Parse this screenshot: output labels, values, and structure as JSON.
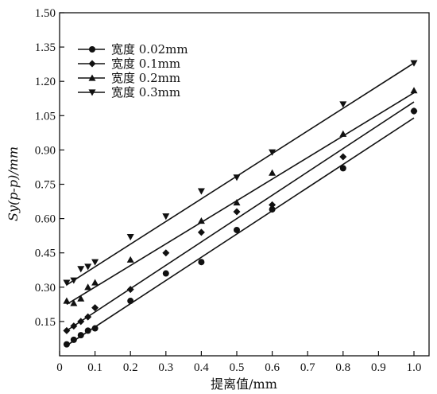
{
  "chart_data": {
    "type": "scatter",
    "xlabel": "提离值/mm",
    "ylabel": "Sy(p-p)/mm",
    "xlim": [
      0,
      1.05
    ],
    "ylim": [
      0,
      1.5
    ],
    "x_ticks": [
      0,
      0.1,
      0.2,
      0.3,
      0.4,
      0.5,
      0.6,
      0.7,
      0.8,
      0.9,
      1.0
    ],
    "x_tick_labels": [
      "0",
      "0.1",
      "0.2",
      "0.3",
      "0.4",
      "0.5",
      "0.6",
      "0.7",
      "0.8",
      "0.9",
      "1.0"
    ],
    "y_ticks": [
      0.15,
      0.3,
      0.45,
      0.6,
      0.75,
      0.9,
      1.05,
      1.2,
      1.35,
      1.5
    ],
    "y_tick_labels": [
      "0.15",
      "0.30",
      "0.45",
      "0.60",
      "0.75",
      "0.90",
      "1.05",
      "1.20",
      "1.35",
      "1.50"
    ],
    "grid": false,
    "legend_position": "top-left",
    "series": [
      {
        "name": "宽度  0.02mm",
        "marker": "circle",
        "x": [
          0.02,
          0.04,
          0.06,
          0.08,
          0.1,
          0.2,
          0.3,
          0.4,
          0.5,
          0.6,
          0.8,
          1.0
        ],
        "y": [
          0.05,
          0.07,
          0.09,
          0.11,
          0.12,
          0.24,
          0.36,
          0.41,
          0.55,
          0.64,
          0.82,
          1.07
        ],
        "fit": [
          [
            0.02,
            0.045
          ],
          [
            1.0,
            1.04
          ]
        ]
      },
      {
        "name": "宽度  0.1mm",
        "marker": "diamond",
        "x": [
          0.02,
          0.04,
          0.06,
          0.08,
          0.1,
          0.2,
          0.3,
          0.4,
          0.5,
          0.6,
          0.8,
          1.0
        ],
        "y": [
          0.11,
          0.13,
          0.15,
          0.17,
          0.21,
          0.29,
          0.45,
          0.54,
          0.63,
          0.66,
          0.87,
          1.07
        ],
        "fit": [
          [
            0.02,
            0.11
          ],
          [
            1.0,
            1.11
          ]
        ]
      },
      {
        "name": "宽度  0.2mm",
        "marker": "triangle-up",
        "x": [
          0.02,
          0.04,
          0.06,
          0.08,
          0.1,
          0.2,
          0.4,
          0.5,
          0.6,
          0.8,
          1.0
        ],
        "y": [
          0.24,
          0.23,
          0.25,
          0.3,
          0.32,
          0.42,
          0.59,
          0.67,
          0.8,
          0.97,
          1.16
        ],
        "fit": [
          [
            0.02,
            0.225
          ],
          [
            1.0,
            1.15
          ]
        ]
      },
      {
        "name": "宽度  0.3mm",
        "marker": "triangle-down",
        "x": [
          0.02,
          0.04,
          0.06,
          0.08,
          0.1,
          0.2,
          0.3,
          0.4,
          0.5,
          0.6,
          0.8,
          1.0
        ],
        "y": [
          0.32,
          0.33,
          0.38,
          0.39,
          0.41,
          0.52,
          0.61,
          0.72,
          0.78,
          0.89,
          1.1,
          1.28
        ],
        "fit": [
          [
            0.02,
            0.31
          ],
          [
            1.0,
            1.28
          ]
        ]
      }
    ]
  }
}
